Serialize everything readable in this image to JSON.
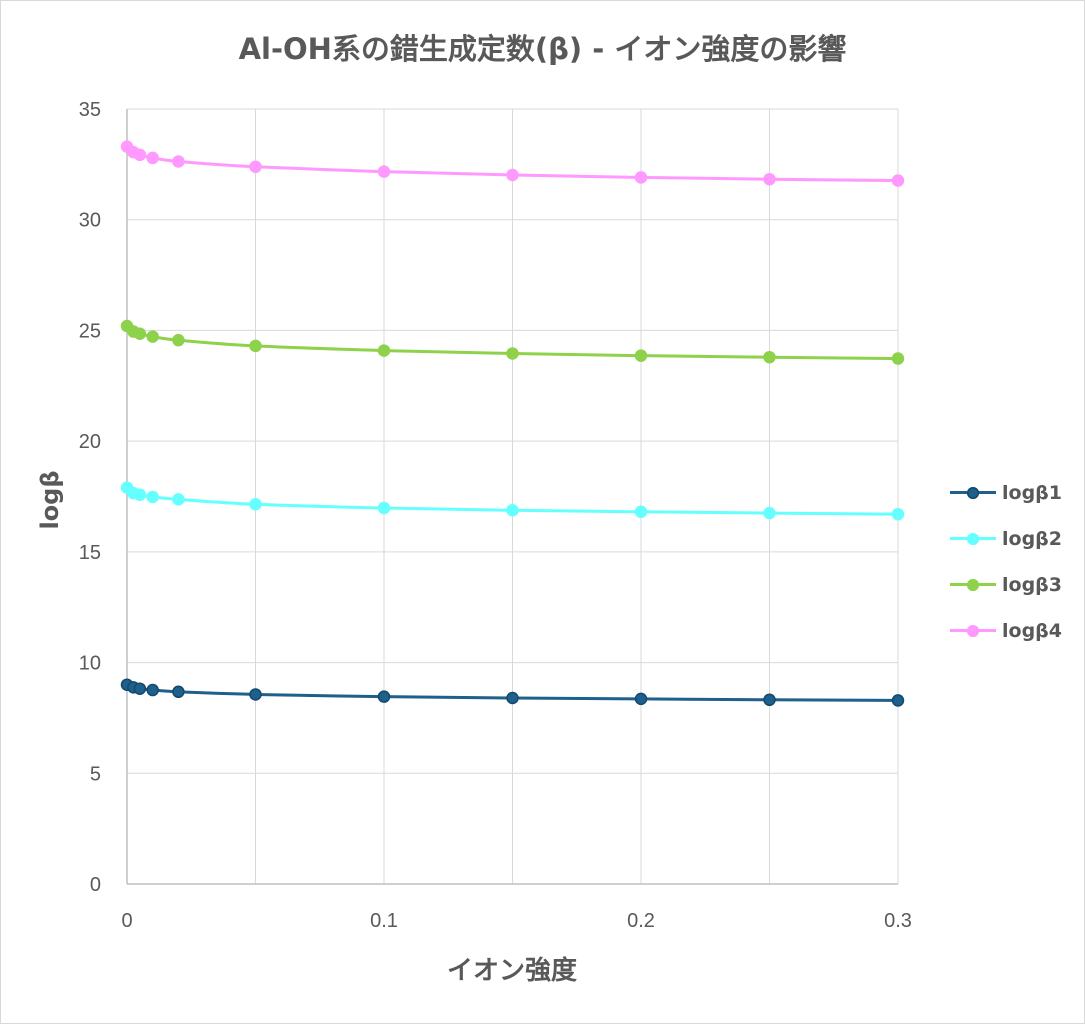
{
  "chart_data": {
    "type": "line",
    "title": "Al-OH系の錯生成定数(β) - イオン強度の影響",
    "xlabel": "イオン強度",
    "ylabel": "logβ",
    "xlim": [
      0,
      0.3
    ],
    "ylim": [
      0,
      35
    ],
    "x_ticks": [
      "0",
      "0.1",
      "0.2",
      "0.3"
    ],
    "y_ticks": [
      "0",
      "5",
      "10",
      "15",
      "20",
      "25",
      "30",
      "35"
    ],
    "grid": true,
    "legend_position": "right",
    "x": [
      0,
      0.0025,
      0.005,
      0.01,
      0.02,
      0.05,
      0.1,
      0.15,
      0.2,
      0.25,
      0.3
    ],
    "series": [
      {
        "name": "logβ1",
        "color": "#1f5f8b",
        "marker_edge": "#124a6e",
        "values": [
          9.0,
          8.88,
          8.82,
          8.76,
          8.68,
          8.56,
          8.46,
          8.4,
          8.36,
          8.32,
          8.29
        ]
      },
      {
        "name": "logβ2",
        "color": "#66ffff",
        "marker_edge": "#66ffff",
        "values": [
          17.9,
          17.65,
          17.58,
          17.48,
          17.37,
          17.15,
          16.98,
          16.88,
          16.81,
          16.75,
          16.7
        ]
      },
      {
        "name": "logβ3",
        "color": "#8ed14b",
        "marker_edge": "#8ed14b",
        "values": [
          25.2,
          24.95,
          24.85,
          24.72,
          24.56,
          24.3,
          24.09,
          23.96,
          23.86,
          23.79,
          23.73
        ]
      },
      {
        "name": "logβ4",
        "color": "#ff99ff",
        "marker_edge": "#ff99ff",
        "values": [
          33.3,
          33.05,
          32.93,
          32.79,
          32.63,
          32.39,
          32.17,
          32.02,
          31.91,
          31.83,
          31.77
        ]
      }
    ]
  }
}
